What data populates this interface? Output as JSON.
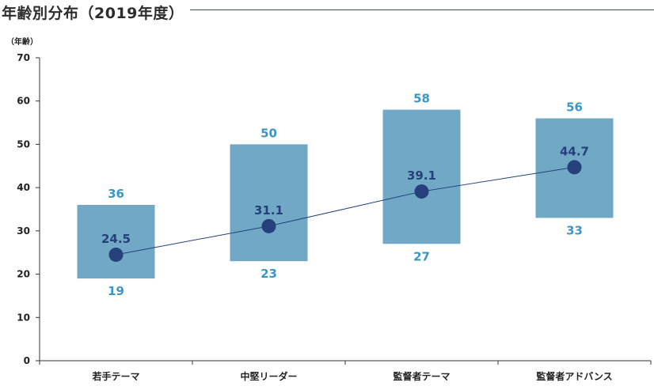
{
  "title": "年齢別分布（2019年度）",
  "colors": {
    "bar": "#70a8c6",
    "avg_marker": "#25407a",
    "value_label": "#3a97c4",
    "axis": "#333333",
    "title_rule": "#3a4f6a"
  },
  "chart_data": {
    "type": "floating-bar",
    "title": "年齢別分布（2019年度）",
    "ylabel": "（年齢）",
    "ylim": [
      0,
      70
    ],
    "yticks": [
      0,
      10,
      20,
      30,
      40,
      50,
      60,
      70
    ],
    "categories": [
      "若手テーマ",
      "中堅リーダー",
      "監督者テーマ",
      "監督者アドバンス"
    ],
    "min": [
      19,
      23,
      27,
      33
    ],
    "max": [
      36,
      50,
      58,
      56
    ],
    "average": [
      24.5,
      31.1,
      39.1,
      44.7
    ],
    "min_labels": [
      "19",
      "23",
      "27",
      "33"
    ],
    "max_labels": [
      "36",
      "50",
      "58",
      "56"
    ],
    "average_labels": [
      "24.5",
      "31.1",
      "39.1",
      "44.7"
    ],
    "grid": false
  }
}
